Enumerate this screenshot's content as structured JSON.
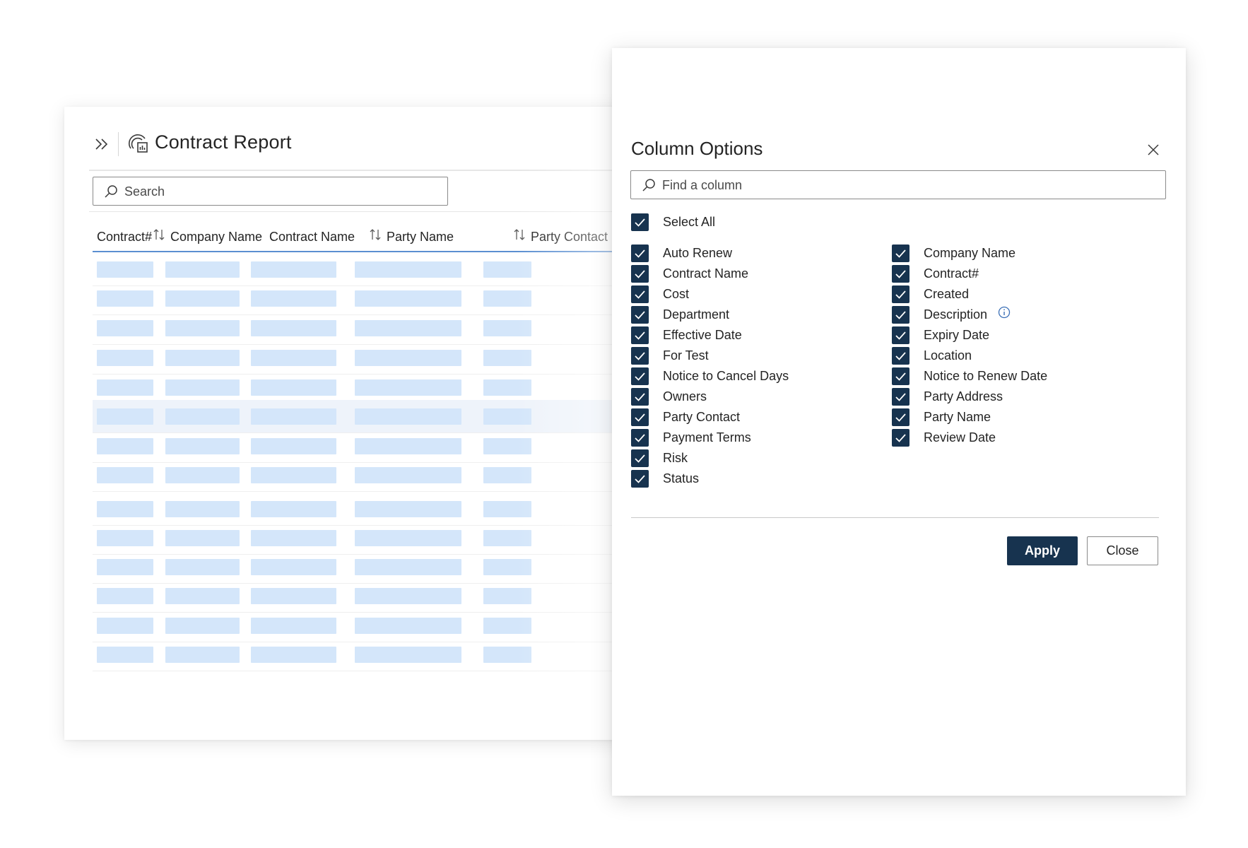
{
  "report": {
    "title": "Contract Report",
    "search_placeholder": "Search",
    "columns": [
      {
        "label": "Contract#",
        "sortable": true
      },
      {
        "label": "Company Name",
        "sortable": false
      },
      {
        "label": "Contract Name",
        "sortable": true
      },
      {
        "label": "Party Name",
        "sortable": true
      },
      {
        "label": "Party Contact",
        "sortable": false
      }
    ],
    "row_count": 14,
    "loading_placeholder_color": "#d4e6fa"
  },
  "icons": {
    "expand": "chevron-double-right-icon",
    "report": "contract-report-icon",
    "search": "search-icon",
    "sort": "sort-arrows-icon",
    "close": "close-icon",
    "info": "info-icon",
    "check": "checkmark-icon"
  },
  "panel": {
    "title": "Column Options",
    "find_placeholder": "Find a column",
    "select_all": {
      "label": "Select All",
      "checked": true
    },
    "left_column": [
      {
        "label": "Auto Renew",
        "checked": true
      },
      {
        "label": "Contract Name",
        "checked": true
      },
      {
        "label": "Cost",
        "checked": true
      },
      {
        "label": "Department",
        "checked": true
      },
      {
        "label": "Effective Date",
        "checked": true
      },
      {
        "label": "For Test",
        "checked": true
      },
      {
        "label": "Notice to Cancel Days",
        "checked": true
      },
      {
        "label": "Owners",
        "checked": true
      },
      {
        "label": "Party Contact",
        "checked": true
      },
      {
        "label": "Payment Terms",
        "checked": true
      },
      {
        "label": "Risk",
        "checked": true
      },
      {
        "label": "Status",
        "checked": true
      }
    ],
    "right_column": [
      {
        "label": "Company Name",
        "checked": true
      },
      {
        "label": "Contract#",
        "checked": true
      },
      {
        "label": "Created",
        "checked": true
      },
      {
        "label": "Description",
        "checked": true,
        "info": true
      },
      {
        "label": "Expiry Date",
        "checked": true
      },
      {
        "label": "Location",
        "checked": true
      },
      {
        "label": "Notice to Renew Date",
        "checked": true
      },
      {
        "label": "Party Address",
        "checked": true
      },
      {
        "label": "Party Name",
        "checked": true
      },
      {
        "label": "Review Date",
        "checked": true
      }
    ],
    "apply_label": "Apply",
    "close_label": "Close"
  },
  "colors": {
    "primary": "#17334f",
    "header_underline": "#5b8fd1",
    "row_hover": "#eef3fa"
  }
}
